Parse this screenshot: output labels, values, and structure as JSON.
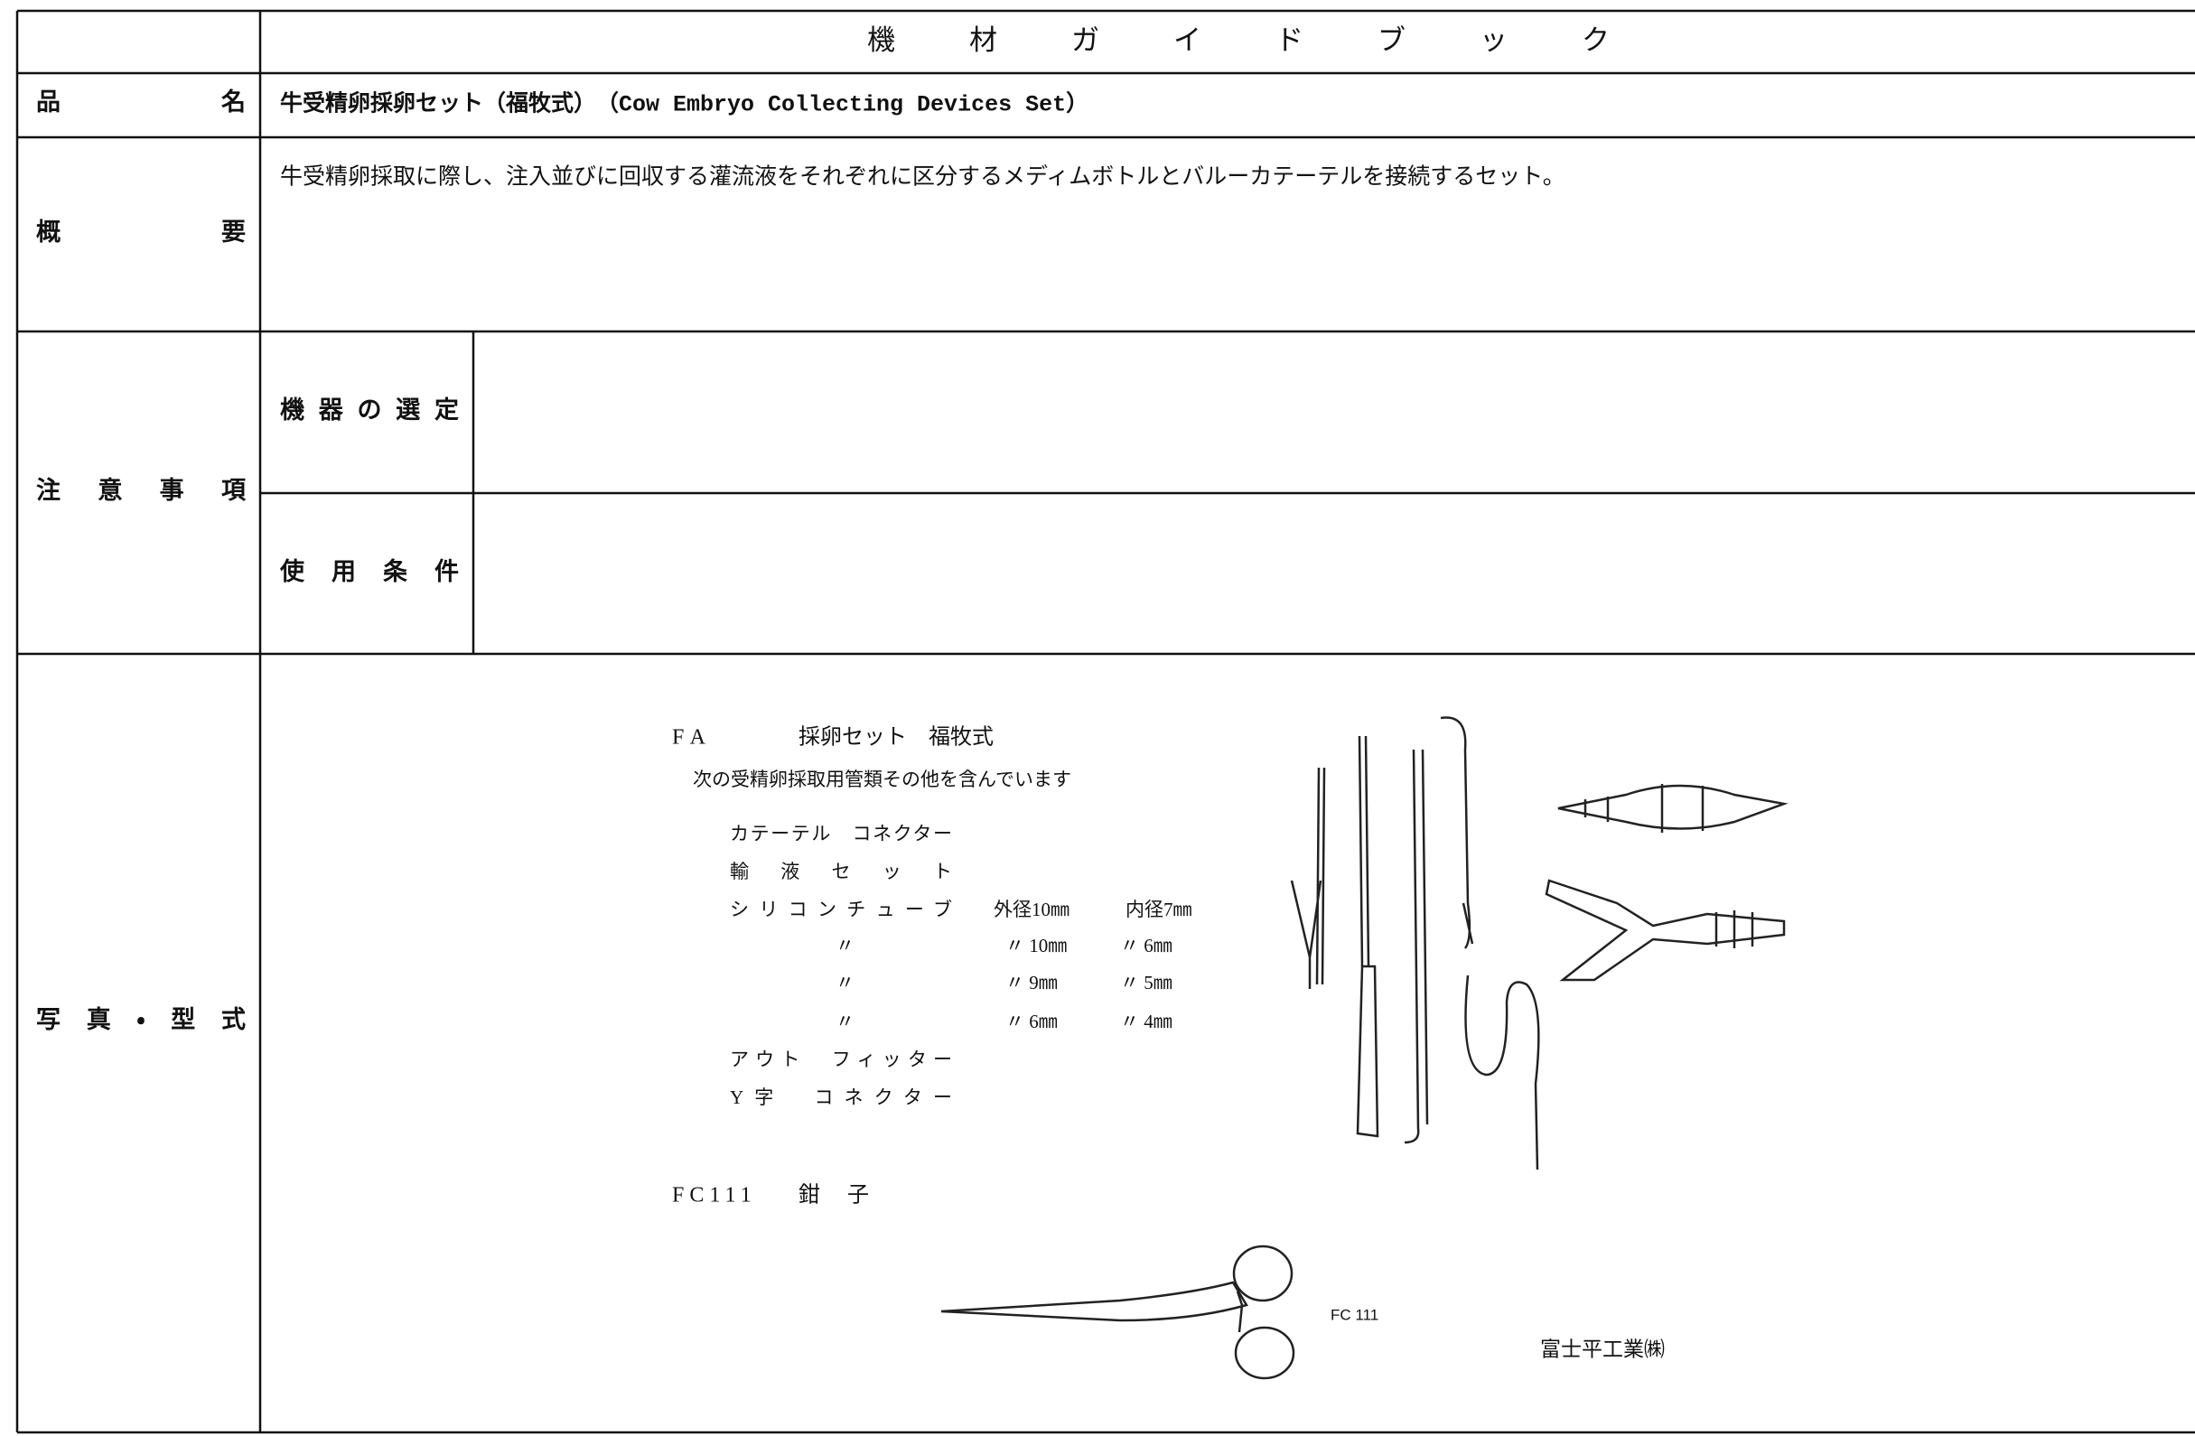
{
  "header": {
    "title": "機材ガイドブック"
  },
  "product_name": {
    "label": "品名",
    "value": "牛受精卵採卵セット（福牧式）　（Cow Embryo Collecting Devices Set）"
  },
  "summary": {
    "label": "概要",
    "value": "牛受精卵採取に際し、注入並びに回収する灌流液をそれぞれに区分するメディムボトルとバルーカテーテルを接続するセット。"
  },
  "cautions": {
    "label": "注意事項",
    "items": [
      {
        "label": "機器の選定"
      },
      {
        "label": "使用条件"
      }
    ]
  },
  "photo": {
    "label": "写真・型式",
    "set": {
      "code": "FA",
      "name": "採卵セット　福牧式",
      "description": "次の受精卵採取用管類その他を含んでいます",
      "items": [
        {
          "name": "カテーテル　コネクター"
        },
        {
          "name": "輸液セット"
        },
        {
          "name": "シリコンチューブ",
          "outer": "外径10㎜",
          "inner": "内径7㎜"
        },
        {
          "name": "〃",
          "outer": "〃 10㎜",
          "inner": "〃 6㎜"
        },
        {
          "name": "〃",
          "outer": "〃 9㎜",
          "inner": "〃 5㎜"
        },
        {
          "name": "〃",
          "outer": "〃 6㎜",
          "inner": "〃 4㎜"
        },
        {
          "name": "アウト　フィッター"
        },
        {
          "name": "Y字　コネクター"
        }
      ]
    },
    "forceps": {
      "code": "FC111",
      "name": "鉗子",
      "caption": "FC 111"
    },
    "maker": "富士平工業㈱"
  }
}
